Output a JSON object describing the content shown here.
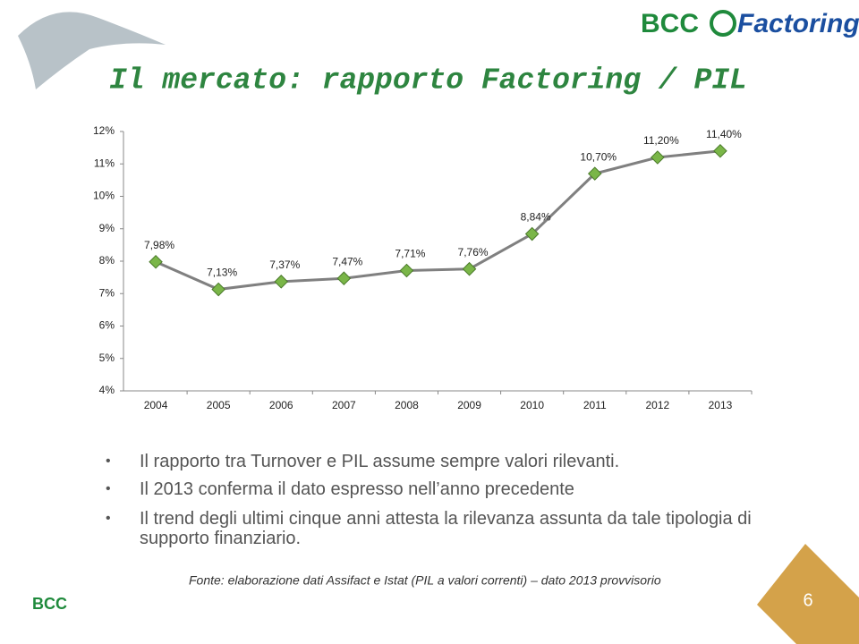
{
  "header": {
    "logo_left": "BCC",
    "logo_right": "Factoring",
    "title": "Il mercato: rapporto Factoring / PIL"
  },
  "chart_data": {
    "type": "line",
    "categories": [
      "2004",
      "2005",
      "2006",
      "2007",
      "2008",
      "2009",
      "2010",
      "2011",
      "2012",
      "2013"
    ],
    "series": [
      {
        "color": "#808080",
        "marker_color": "#7ab648",
        "values": [
          7.98,
          7.13,
          7.37,
          7.47,
          7.71,
          7.76,
          8.84,
          10.7,
          11.2,
          11.4
        ],
        "value_labels": [
          "7,98%",
          "7,13%",
          "7,37%",
          "7,47%",
          "7,71%",
          "7,76%",
          "8,84%",
          "10,70%",
          "11,20%",
          "11,40%"
        ]
      }
    ],
    "ylim": [
      4,
      12
    ],
    "yticks": [
      {
        "value": 4,
        "label": "4%"
      },
      {
        "value": 5,
        "label": "5%"
      },
      {
        "value": 6,
        "label": "6%"
      },
      {
        "value": 7,
        "label": "7%"
      },
      {
        "value": 8,
        "label": "8%"
      },
      {
        "value": 9,
        "label": "9%"
      },
      {
        "value": 10,
        "label": "10%"
      },
      {
        "value": 11,
        "label": "11%"
      },
      {
        "value": 12,
        "label": "12%"
      }
    ],
    "grid": false
  },
  "bullets": [
    "Il rapporto tra Turnover e PIL assume sempre valori rilevanti.",
    "Il 2013 conferma il dato espresso nell’anno precedente",
    "Il trend degli ultimi cinque anni attesta la rilevanza assunta da tale tipologia di supporto finanziario."
  ],
  "source": "Fonte: elaborazione dati Assifact e Istat (PIL a valori correnti) – dato 2013 provvisorio",
  "footer_logo": "BCC",
  "page_number": "6"
}
